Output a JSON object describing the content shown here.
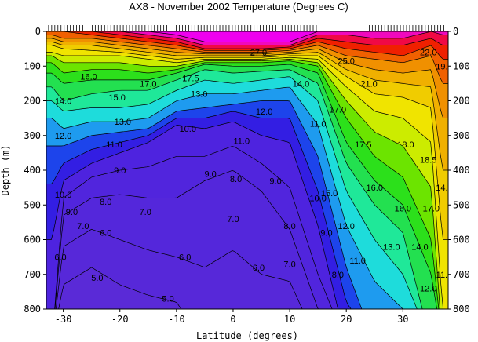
{
  "chart_data": {
    "type": "heatmap",
    "title": "AX8 - November 2002    Temperature (Degrees C)",
    "xlabel": "Latitude (degrees)",
    "ylabel": "Depth (m)",
    "xlim": [
      -33,
      38
    ],
    "ylim": [
      0,
      800
    ],
    "y_inverted": true,
    "grid": false,
    "x_ticks": [
      -30,
      -20,
      -10,
      0,
      10,
      20,
      30
    ],
    "x_tick_labels": [
      "-30",
      "-20",
      "-10",
      "0",
      "10",
      "20",
      "30"
    ],
    "y_ticks": [
      0,
      100,
      200,
      300,
      400,
      500,
      600,
      700,
      800
    ],
    "y_tick_labels": [
      "0",
      "100",
      "200",
      "300",
      "400",
      "500",
      "600",
      "700",
      "800"
    ],
    "temperature_levels": [
      5,
      6,
      7,
      8,
      9,
      10,
      11,
      12,
      13,
      14,
      15,
      16,
      17,
      18,
      19,
      20,
      21,
      22,
      23,
      24,
      25,
      26,
      27
    ],
    "color_stops": [
      {
        "t": 5,
        "color": "#5b2bd6"
      },
      {
        "t": 10,
        "color": "#4c22e0"
      },
      {
        "t": 11,
        "color": "#1a1ae6"
      },
      {
        "t": 12,
        "color": "#1f6ef0"
      },
      {
        "t": 13,
        "color": "#1cc8ee"
      },
      {
        "t": 14,
        "color": "#20f0c8"
      },
      {
        "t": 15,
        "color": "#1ee06a"
      },
      {
        "t": 17,
        "color": "#30e000"
      },
      {
        "t": 18,
        "color": "#a8e800"
      },
      {
        "t": 19,
        "color": "#f0f000"
      },
      {
        "t": 21,
        "color": "#f0c000"
      },
      {
        "t": 23,
        "color": "#f08000"
      },
      {
        "t": 25,
        "color": "#f00000"
      },
      {
        "t": 26,
        "color": "#f0128a"
      },
      {
        "t": 27,
        "color": "#ef00ef"
      }
    ],
    "series": [
      {
        "latitude": -32,
        "depths_by_level": {
          "5": 9999,
          "6": 9999,
          "7": 9999,
          "8": 9999,
          "9": 9999,
          "10": 600,
          "11": 440,
          "12": 330,
          "13": 250,
          "14": 200,
          "15": 160,
          "16": 120,
          "17": 90,
          "18": 70,
          "19": 60,
          "20": 40,
          "21": 30,
          "22": 20,
          "23": 10,
          "24": 0,
          "25": 0,
          "26": 0,
          "27": 0
        }
      },
      {
        "latitude": -30,
        "depths_by_level": {
          "5": 9999,
          "6": 730,
          "7": 620,
          "8": 530,
          "9": 480,
          "10": 430,
          "11": 380,
          "12": 330,
          "13": 280,
          "14": 230,
          "15": 200,
          "16": 150,
          "17": 120,
          "18": 90,
          "19": 70,
          "20": 50,
          "21": 40,
          "22": 30,
          "23": 20,
          "24": 0,
          "25": 0,
          "26": 0,
          "27": 0
        }
      },
      {
        "latitude": -25,
        "depths_by_level": {
          "5": 9999,
          "6": 680,
          "7": 570,
          "8": 480,
          "9": 420,
          "10": 380,
          "11": 340,
          "12": 300,
          "13": 260,
          "14": 220,
          "15": 180,
          "16": 140,
          "17": 110,
          "18": 90,
          "19": 70,
          "20": 55,
          "21": 40,
          "22": 30,
          "23": 20,
          "24": 10,
          "25": 0,
          "26": 0,
          "27": 0
        }
      },
      {
        "latitude": -20,
        "depths_by_level": {
          "5": 9999,
          "6": 730,
          "7": 600,
          "8": 470,
          "9": 400,
          "10": 350,
          "11": 320,
          "12": 290,
          "13": 260,
          "14": 220,
          "15": 170,
          "16": 140,
          "17": 110,
          "18": 90,
          "19": 70,
          "20": 60,
          "21": 50,
          "22": 40,
          "23": 30,
          "24": 20,
          "25": 10,
          "26": 0,
          "27": 0
        }
      },
      {
        "latitude": -15,
        "depths_by_level": {
          "5": 9999,
          "6": 760,
          "7": 630,
          "8": 480,
          "9": 390,
          "10": 320,
          "11": 300,
          "12": 280,
          "13": 250,
          "14": 210,
          "15": 170,
          "16": 140,
          "17": 120,
          "18": 100,
          "19": 80,
          "20": 70,
          "21": 60,
          "22": 50,
          "23": 40,
          "24": 30,
          "25": 20,
          "26": 10,
          "27": 0
        }
      },
      {
        "latitude": -10,
        "depths_by_level": {
          "5": 9999,
          "6": 780,
          "7": 650,
          "8": 480,
          "9": 360,
          "10": 270,
          "11": 250,
          "12": 230,
          "13": 200,
          "14": 170,
          "15": 140,
          "16": 120,
          "17": 110,
          "18": 100,
          "19": 90,
          "20": 80,
          "21": 70,
          "22": 60,
          "23": 50,
          "24": 40,
          "25": 30,
          "26": 20,
          "27": 10
        }
      },
      {
        "latitude": -5,
        "depths_by_level": {
          "5": 9999,
          "6": 9999,
          "7": 680,
          "8": 430,
          "9": 360,
          "10": 280,
          "11": 250,
          "12": 220,
          "13": 180,
          "14": 140,
          "15": 110,
          "16": 95,
          "17": 90,
          "18": 85,
          "19": 80,
          "20": 75,
          "21": 70,
          "22": 65,
          "23": 60,
          "24": 55,
          "25": 50,
          "26": 40,
          "27": 30
        }
      },
      {
        "latitude": 0,
        "depths_by_level": {
          "5": 9999,
          "6": 9999,
          "7": 630,
          "8": 400,
          "9": 330,
          "10": 260,
          "11": 230,
          "12": 210,
          "13": 180,
          "14": 150,
          "15": 120,
          "16": 100,
          "17": 90,
          "18": 85,
          "19": 80,
          "20": 75,
          "21": 70,
          "22": 65,
          "23": 60,
          "24": 55,
          "25": 50,
          "26": 40,
          "27": 30
        }
      },
      {
        "latitude": 5,
        "depths_by_level": {
          "5": 9999,
          "6": 9999,
          "7": 700,
          "8": 460,
          "9": 380,
          "10": 300,
          "11": 250,
          "12": 200,
          "13": 170,
          "14": 140,
          "15": 115,
          "16": 100,
          "17": 90,
          "18": 85,
          "19": 80,
          "20": 75,
          "21": 70,
          "22": 65,
          "23": 60,
          "24": 55,
          "25": 50,
          "26": 40,
          "27": 30
        }
      },
      {
        "latitude": 10,
        "depths_by_level": {
          "5": 9999,
          "6": 9999,
          "7": 720,
          "8": 570,
          "9": 450,
          "10": 320,
          "11": 250,
          "12": 200,
          "13": 160,
          "14": 130,
          "15": 110,
          "16": 95,
          "17": 85,
          "18": 80,
          "19": 75,
          "20": 70,
          "21": 65,
          "22": 60,
          "23": 55,
          "24": 50,
          "25": 45,
          "26": 40,
          "27": 30
        }
      },
      {
        "latitude": 15,
        "depths_by_level": {
          "5": 9999,
          "6": 9999,
          "7": 9999,
          "8": 800,
          "9": 700,
          "10": 560,
          "11": 460,
          "12": 360,
          "13": 270,
          "14": 200,
          "15": 150,
          "16": 120,
          "17": 100,
          "18": 90,
          "19": 80,
          "20": 70,
          "21": 60,
          "22": 50,
          "23": 40,
          "24": 30,
          "25": 20,
          "26": 10,
          "27": 0
        }
      },
      {
        "latitude": 20,
        "depths_by_level": {
          "5": 9999,
          "6": 9999,
          "7": 9999,
          "8": 9999,
          "9": 9999,
          "10": 9999,
          "11": 780,
          "12": 680,
          "13": 560,
          "14": 460,
          "15": 380,
          "16": 320,
          "17": 250,
          "18": 200,
          "19": 160,
          "20": 130,
          "21": 110,
          "22": 90,
          "23": 70,
          "24": 50,
          "25": 30,
          "26": 10,
          "27": 0
        }
      },
      {
        "latitude": 25,
        "depths_by_level": {
          "5": 9999,
          "6": 9999,
          "7": 9999,
          "8": 9999,
          "9": 9999,
          "10": 9999,
          "11": 9999,
          "12": 9999,
          "13": 720,
          "14": 600,
          "15": 500,
          "16": 430,
          "17": 360,
          "18": 290,
          "19": 230,
          "20": 180,
          "21": 140,
          "22": 110,
          "23": 80,
          "24": 60,
          "25": 40,
          "26": 20,
          "27": 0
        }
      },
      {
        "latitude": 30,
        "depths_by_level": {
          "5": 9999,
          "6": 9999,
          "7": 9999,
          "8": 9999,
          "9": 9999,
          "10": 9999,
          "11": 9999,
          "12": 9999,
          "13": 800,
          "14": 700,
          "15": 580,
          "16": 500,
          "17": 420,
          "18": 330,
          "19": 250,
          "20": 190,
          "21": 150,
          "22": 120,
          "23": 90,
          "24": 70,
          "25": 40,
          "26": 20,
          "27": 0
        }
      },
      {
        "latitude": 35,
        "depths_by_level": {
          "5": 9999,
          "6": 9999,
          "7": 9999,
          "8": 9999,
          "9": 9999,
          "10": 9999,
          "11": 9999,
          "12": 9999,
          "13": 9999,
          "14": 9999,
          "15": 9999,
          "16": 700,
          "17": 600,
          "18": 450,
          "19": 320,
          "20": 220,
          "21": 160,
          "22": 110,
          "23": 70,
          "24": 40,
          "25": 20,
          "26": 0,
          "27": 0
        }
      },
      {
        "latitude": 37,
        "depths_by_level": {
          "5": 9999,
          "6": 9999,
          "7": 9999,
          "8": 9999,
          "9": 9999,
          "10": 9999,
          "11": 9999,
          "12": 9999,
          "13": 9999,
          "14": 9999,
          "15": 9999,
          "16": 9999,
          "17": 9999,
          "18": 9999,
          "19": 800,
          "20": 600,
          "21": 400,
          "22": 250,
          "23": 150,
          "24": 80,
          "25": 40,
          "26": 10,
          "27": 0
        }
      }
    ],
    "contour_labels": [
      {
        "text": "27.0",
        "lat": 4.5,
        "depth": 60
      },
      {
        "text": "25.0",
        "lat": 20,
        "depth": 85
      },
      {
        "text": "22.0",
        "lat": 34.5,
        "depth": 60
      },
      {
        "text": "21.0",
        "lat": 24,
        "depth": 150
      },
      {
        "text": "19.0",
        "lat": 37.3,
        "depth": 100
      },
      {
        "text": "16.0",
        "lat": -25.5,
        "depth": 130
      },
      {
        "text": "17.0",
        "lat": -15,
        "depth": 150
      },
      {
        "text": "17.5",
        "lat": -7.5,
        "depth": 135
      },
      {
        "text": "15.0",
        "lat": -20.5,
        "depth": 190
      },
      {
        "text": "14.0",
        "lat": -30,
        "depth": 200
      },
      {
        "text": "13.0",
        "lat": -6,
        "depth": 180
      },
      {
        "text": "13.0",
        "lat": -19.5,
        "depth": 260
      },
      {
        "text": "12.0",
        "lat": 5.5,
        "depth": 230
      },
      {
        "text": "11.0",
        "lat": -21,
        "depth": 325
      },
      {
        "text": "10.0",
        "lat": -8,
        "depth": 280
      },
      {
        "text": "14.0",
        "lat": 12,
        "depth": 150
      },
      {
        "text": "12.0",
        "lat": -30,
        "depth": 300
      },
      {
        "text": "11.0",
        "lat": 1.5,
        "depth": 315
      },
      {
        "text": "17.0",
        "lat": 18.5,
        "depth": 225
      },
      {
        "text": "11.0",
        "lat": 15,
        "depth": 265
      },
      {
        "text": "17.5",
        "lat": 23,
        "depth": 325
      },
      {
        "text": "18.0",
        "lat": 30.5,
        "depth": 325
      },
      {
        "text": "18.5",
        "lat": 34.5,
        "depth": 370
      },
      {
        "text": "9.0",
        "lat": -4,
        "depth": 410
      },
      {
        "text": "9.0",
        "lat": -20,
        "depth": 400
      },
      {
        "text": "8.0",
        "lat": 0.5,
        "depth": 425
      },
      {
        "text": "9.0",
        "lat": 7.5,
        "depth": 430
      },
      {
        "text": "16.0",
        "lat": 25,
        "depth": 450
      },
      {
        "text": "15.0",
        "lat": 17,
        "depth": 465
      },
      {
        "text": "10.0",
        "lat": -30,
        "depth": 470
      },
      {
        "text": "10.0",
        "lat": 15,
        "depth": 480
      },
      {
        "text": "8.0",
        "lat": -22.5,
        "depth": 490
      },
      {
        "text": "17.0",
        "lat": 35,
        "depth": 510
      },
      {
        "text": "16.0",
        "lat": 30,
        "depth": 510
      },
      {
        "text": "7.0",
        "lat": -15.5,
        "depth": 520
      },
      {
        "text": "9.0",
        "lat": -28.5,
        "depth": 520
      },
      {
        "text": "14.0",
        "lat": 37.3,
        "depth": 450
      },
      {
        "text": "8.0",
        "lat": 10,
        "depth": 560
      },
      {
        "text": "7.0",
        "lat": -26.5,
        "depth": 560
      },
      {
        "text": "7.0",
        "lat": 0,
        "depth": 540
      },
      {
        "text": "6.0",
        "lat": -22.5,
        "depth": 580
      },
      {
        "text": "12.0",
        "lat": 20,
        "depth": 560
      },
      {
        "text": "9.0",
        "lat": 16.5,
        "depth": 580
      },
      {
        "text": "13.0",
        "lat": 28,
        "depth": 620
      },
      {
        "text": "14.0",
        "lat": 33,
        "depth": 620
      },
      {
        "text": "6.0",
        "lat": -30.5,
        "depth": 650
      },
      {
        "text": "6.0",
        "lat": -8.5,
        "depth": 650
      },
      {
        "text": "11.0",
        "lat": 22,
        "depth": 660
      },
      {
        "text": "7.0",
        "lat": 10,
        "depth": 670
      },
      {
        "text": "6.0",
        "lat": 4.5,
        "depth": 680
      },
      {
        "text": "8.0",
        "lat": 18.5,
        "depth": 700
      },
      {
        "text": "5.0",
        "lat": -24,
        "depth": 710
      },
      {
        "text": "12.0",
        "lat": 34.5,
        "depth": 740
      },
      {
        "text": "5.0",
        "lat": -11.5,
        "depth": 770
      },
      {
        "text": "11.0",
        "lat": 37.3,
        "depth": 700
      }
    ]
  }
}
